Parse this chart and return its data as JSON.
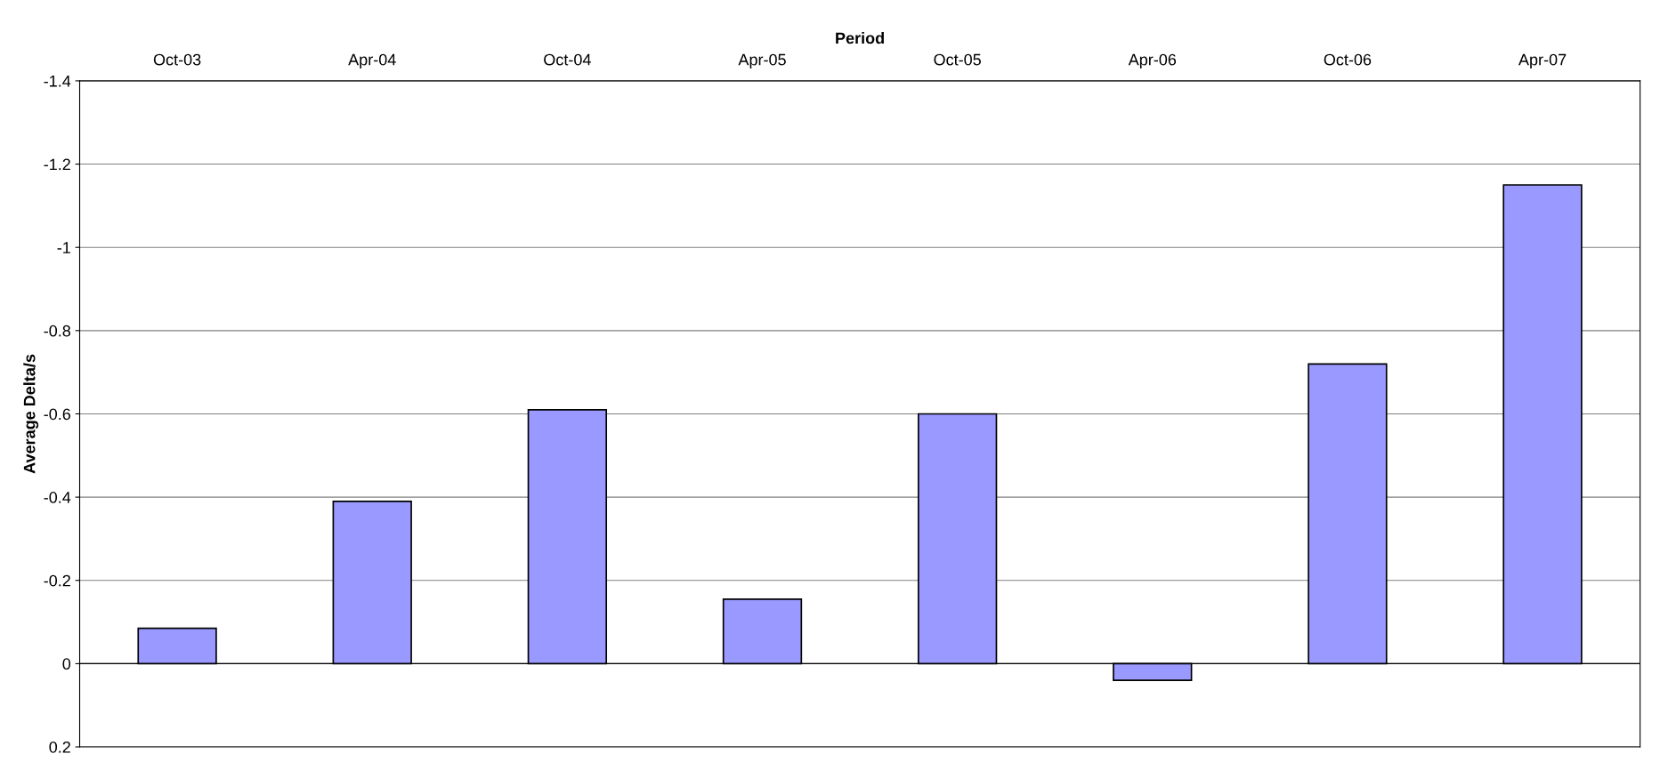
{
  "chart_data": {
    "type": "bar",
    "xlabel": "Period",
    "ylabel": "Average Delta/s",
    "categories": [
      "Oct-03",
      "Apr-04",
      "Oct-04",
      "Apr-05",
      "Oct-05",
      "Apr-06",
      "Oct-06",
      "Apr-07"
    ],
    "values": [
      -0.085,
      -0.39,
      -0.61,
      -0.155,
      -0.6,
      0.04,
      -0.72,
      -1.15
    ],
    "color": "#9999ff",
    "ylim": [
      0.2,
      -1.4
    ],
    "yticks": [
      -1.4,
      -1.2,
      -1,
      -0.8,
      -0.6,
      -0.4,
      -0.2,
      0,
      0.2
    ],
    "grid": "y"
  }
}
